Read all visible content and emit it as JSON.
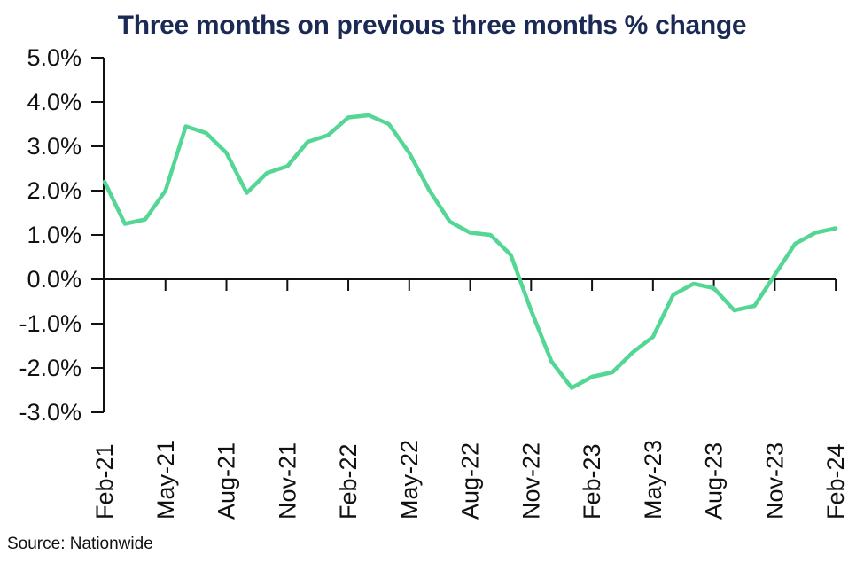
{
  "chart_data": {
    "type": "line",
    "title": "Three months on previous three months % change",
    "source": "Source: Nationwide",
    "x": [
      "Feb-21",
      "Mar-21",
      "Apr-21",
      "May-21",
      "Jun-21",
      "Jul-21",
      "Aug-21",
      "Sep-21",
      "Oct-21",
      "Nov-21",
      "Dec-21",
      "Jan-22",
      "Feb-22",
      "Mar-22",
      "Apr-22",
      "May-22",
      "Jun-22",
      "Jul-22",
      "Aug-22",
      "Sep-22",
      "Oct-22",
      "Nov-22",
      "Dec-22",
      "Jan-23",
      "Feb-23",
      "Mar-23",
      "Apr-23",
      "May-23",
      "Jun-23",
      "Jul-23",
      "Aug-23",
      "Sep-23",
      "Oct-23",
      "Nov-23",
      "Dec-23",
      "Jan-24",
      "Feb-24"
    ],
    "series": [
      {
        "name": "Three months on previous three months % change",
        "values": [
          2.2,
          1.25,
          1.35,
          2.0,
          3.45,
          3.3,
          2.85,
          1.95,
          2.4,
          2.55,
          3.1,
          3.25,
          3.65,
          3.7,
          3.5,
          2.85,
          2.0,
          1.3,
          1.05,
          1.0,
          0.55,
          -0.7,
          -1.85,
          -2.45,
          -2.2,
          -2.1,
          -1.65,
          -1.3,
          -0.35,
          -0.1,
          -0.2,
          -0.7,
          -0.6,
          0.1,
          0.8,
          1.05,
          1.15
        ]
      }
    ],
    "x_tick_every": 3,
    "x_tick_labels": [
      "Feb-21",
      "May-21",
      "Aug-21",
      "Nov-21",
      "Feb-22",
      "May-22",
      "Aug-22",
      "Nov-22",
      "Feb-23",
      "May-23",
      "Aug-23",
      "Nov-23",
      "Feb-24"
    ],
    "ylim": [
      -3.0,
      5.0
    ],
    "y_tick_values": [
      5,
      4,
      3,
      2,
      1,
      0,
      -1,
      -2,
      -3
    ],
    "y_tick_labels": [
      "5.0%",
      "4.0%",
      "3.0%",
      "2.0%",
      "1.0%",
      "0.0%",
      "-1.0%",
      "-2.0%",
      "-3.0%"
    ],
    "grid": false,
    "legend": "none",
    "baseline_at_zero": true,
    "line_color": "#54d694",
    "axis_color": "#111111",
    "title_color": "#1a2a55",
    "text_color": "#111111"
  }
}
